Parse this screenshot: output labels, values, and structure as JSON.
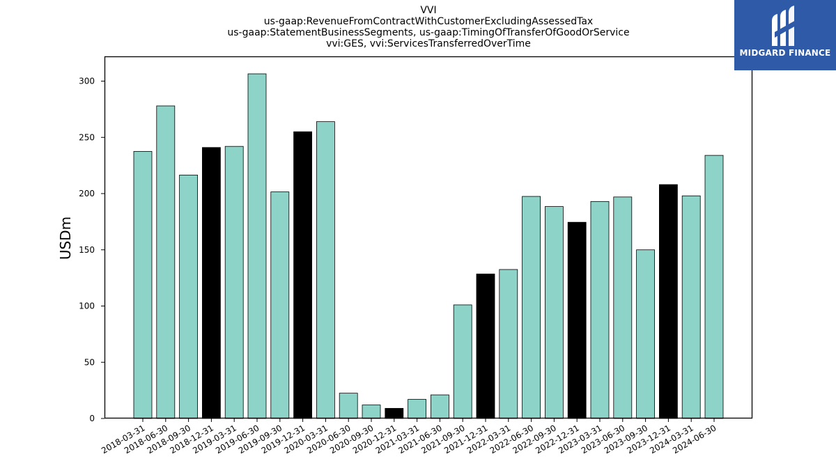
{
  "chart_data": {
    "type": "bar",
    "title_lines": [
      "VVI",
      "us-gaap:RevenueFromContractWithCustomerExcludingAssessedTax",
      "us-gaap:StatementBusinessSegments, us-gaap:TimingOfTransferOfGoodOrService",
      "vvi:GES, vvi:ServicesTransferredOverTime"
    ],
    "ylabel": "USDm",
    "xlabel": "",
    "ylim": [
      0,
      322
    ],
    "yticks": [
      0,
      50,
      100,
      150,
      200,
      250,
      300
    ],
    "categories": [
      "2018-03-31",
      "2018-06-30",
      "2018-09-30",
      "2018-12-31",
      "2019-03-31",
      "2019-06-30",
      "2019-09-30",
      "2019-12-31",
      "2020-03-31",
      "2020-06-30",
      "2020-09-30",
      "2020-12-31",
      "2021-03-31",
      "2021-06-30",
      "2021-09-30",
      "2021-12-31",
      "2022-03-31",
      "2022-06-30",
      "2022-09-30",
      "2022-12-31",
      "2023-03-31",
      "2023-06-30",
      "2023-09-30",
      "2023-12-31",
      "2024-03-31",
      "2024-06-30"
    ],
    "values": [
      237.5,
      278,
      216.5,
      241,
      242,
      306.5,
      201.5,
      255,
      264,
      22.5,
      12,
      9,
      17,
      21,
      101,
      128.5,
      132.5,
      197.5,
      188.5,
      174.5,
      193,
      197,
      150,
      208,
      198,
      234
    ],
    "highlight": [
      false,
      false,
      false,
      true,
      false,
      false,
      false,
      true,
      false,
      false,
      false,
      true,
      false,
      false,
      false,
      true,
      false,
      false,
      false,
      true,
      false,
      false,
      false,
      true,
      false,
      false
    ],
    "colors": {
      "bar": "#8dd3c7",
      "highlight": "#000000",
      "edge": "#000000"
    },
    "grid": false
  },
  "logo": {
    "text": "MIDGARD FINANCE",
    "color": "#2f5aa8"
  }
}
